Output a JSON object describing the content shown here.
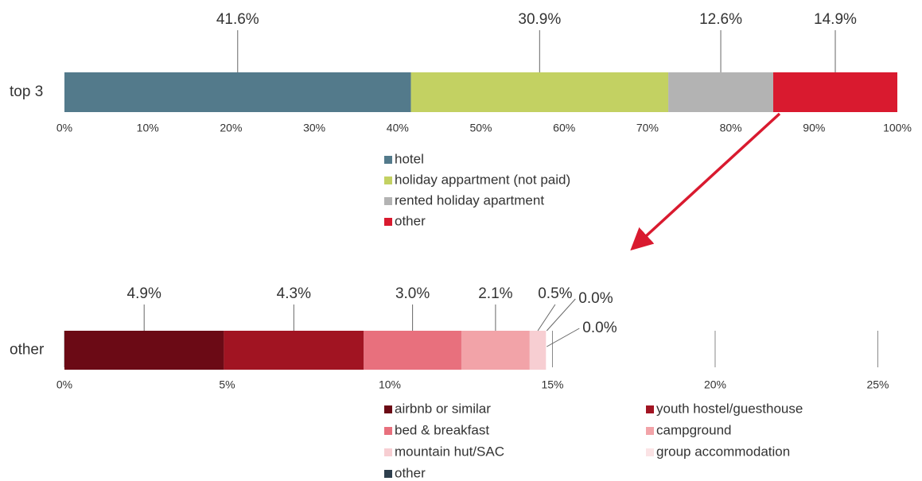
{
  "chart_data": [
    {
      "type": "bar",
      "orientation": "horizontal",
      "stacked": true,
      "categories": [
        "top 3"
      ],
      "series": [
        {
          "name": "hotel",
          "color": "#537a8b",
          "values": [
            41.6
          ],
          "value_labels": [
            "41.6%"
          ]
        },
        {
          "name": "holiday appartment (not paid)",
          "color": "#c3d162",
          "values": [
            30.9
          ],
          "value_labels": [
            "30.9%"
          ]
        },
        {
          "name": "rented holiday apartment",
          "color": "#b3b3b3",
          "values": [
            12.6
          ],
          "value_labels": [
            "12.6%"
          ]
        },
        {
          "name": "other",
          "color": "#d91a2f",
          "values": [
            14.9
          ],
          "value_labels": [
            "14.9%"
          ]
        }
      ],
      "xlim": [
        0,
        100
      ],
      "xticks": [
        {
          "value": 0,
          "label": "0%"
        },
        {
          "value": 10,
          "label": "10%"
        },
        {
          "value": 20,
          "label": "20%"
        },
        {
          "value": 30,
          "label": "30%"
        },
        {
          "value": 40,
          "label": "40%"
        },
        {
          "value": 50,
          "label": "50%"
        },
        {
          "value": 60,
          "label": "60%"
        },
        {
          "value": 70,
          "label": "70%"
        },
        {
          "value": 80,
          "label": "80%"
        },
        {
          "value": 90,
          "label": "90%"
        },
        {
          "value": 100,
          "label": "100%"
        }
      ],
      "grid": false
    },
    {
      "type": "bar",
      "orientation": "horizontal",
      "stacked": true,
      "categories": [
        "other"
      ],
      "series": [
        {
          "name": "airbnb or similar",
          "color": "#6b0a15",
          "values": [
            4.9
          ],
          "value_labels": [
            "4.9%"
          ]
        },
        {
          "name": "youth hostel/guesthouse",
          "color": "#a11422",
          "values": [
            4.3
          ],
          "value_labels": [
            "4.3%"
          ]
        },
        {
          "name": "bed & breakfast",
          "color": "#e8707d",
          "values": [
            3.0
          ],
          "value_labels": [
            "3.0%"
          ]
        },
        {
          "name": "campground",
          "color": "#f2a3a8",
          "values": [
            2.1
          ],
          "value_labels": [
            "2.1%"
          ]
        },
        {
          "name": "mountain hut/SAC",
          "color": "#f7ced2",
          "values": [
            0.5
          ],
          "value_labels": [
            "0.5%"
          ]
        },
        {
          "name": "group accommodation",
          "color": "#fbe3e5",
          "values": [
            0.0
          ],
          "value_labels": [
            "0.0%"
          ]
        },
        {
          "name": "other",
          "color": "#2e3f4d",
          "values": [
            0.0
          ],
          "value_labels": [
            "0.0%"
          ]
        }
      ],
      "xlim": [
        0,
        25.6
      ],
      "xticks": [
        {
          "value": 0,
          "label": "0%"
        },
        {
          "value": 5,
          "label": "5%"
        },
        {
          "value": 10,
          "label": "10%"
        },
        {
          "value": 15,
          "label": "15%"
        },
        {
          "value": 20,
          "label": "20%"
        },
        {
          "value": 25,
          "label": "25%"
        }
      ],
      "grid": true
    }
  ]
}
